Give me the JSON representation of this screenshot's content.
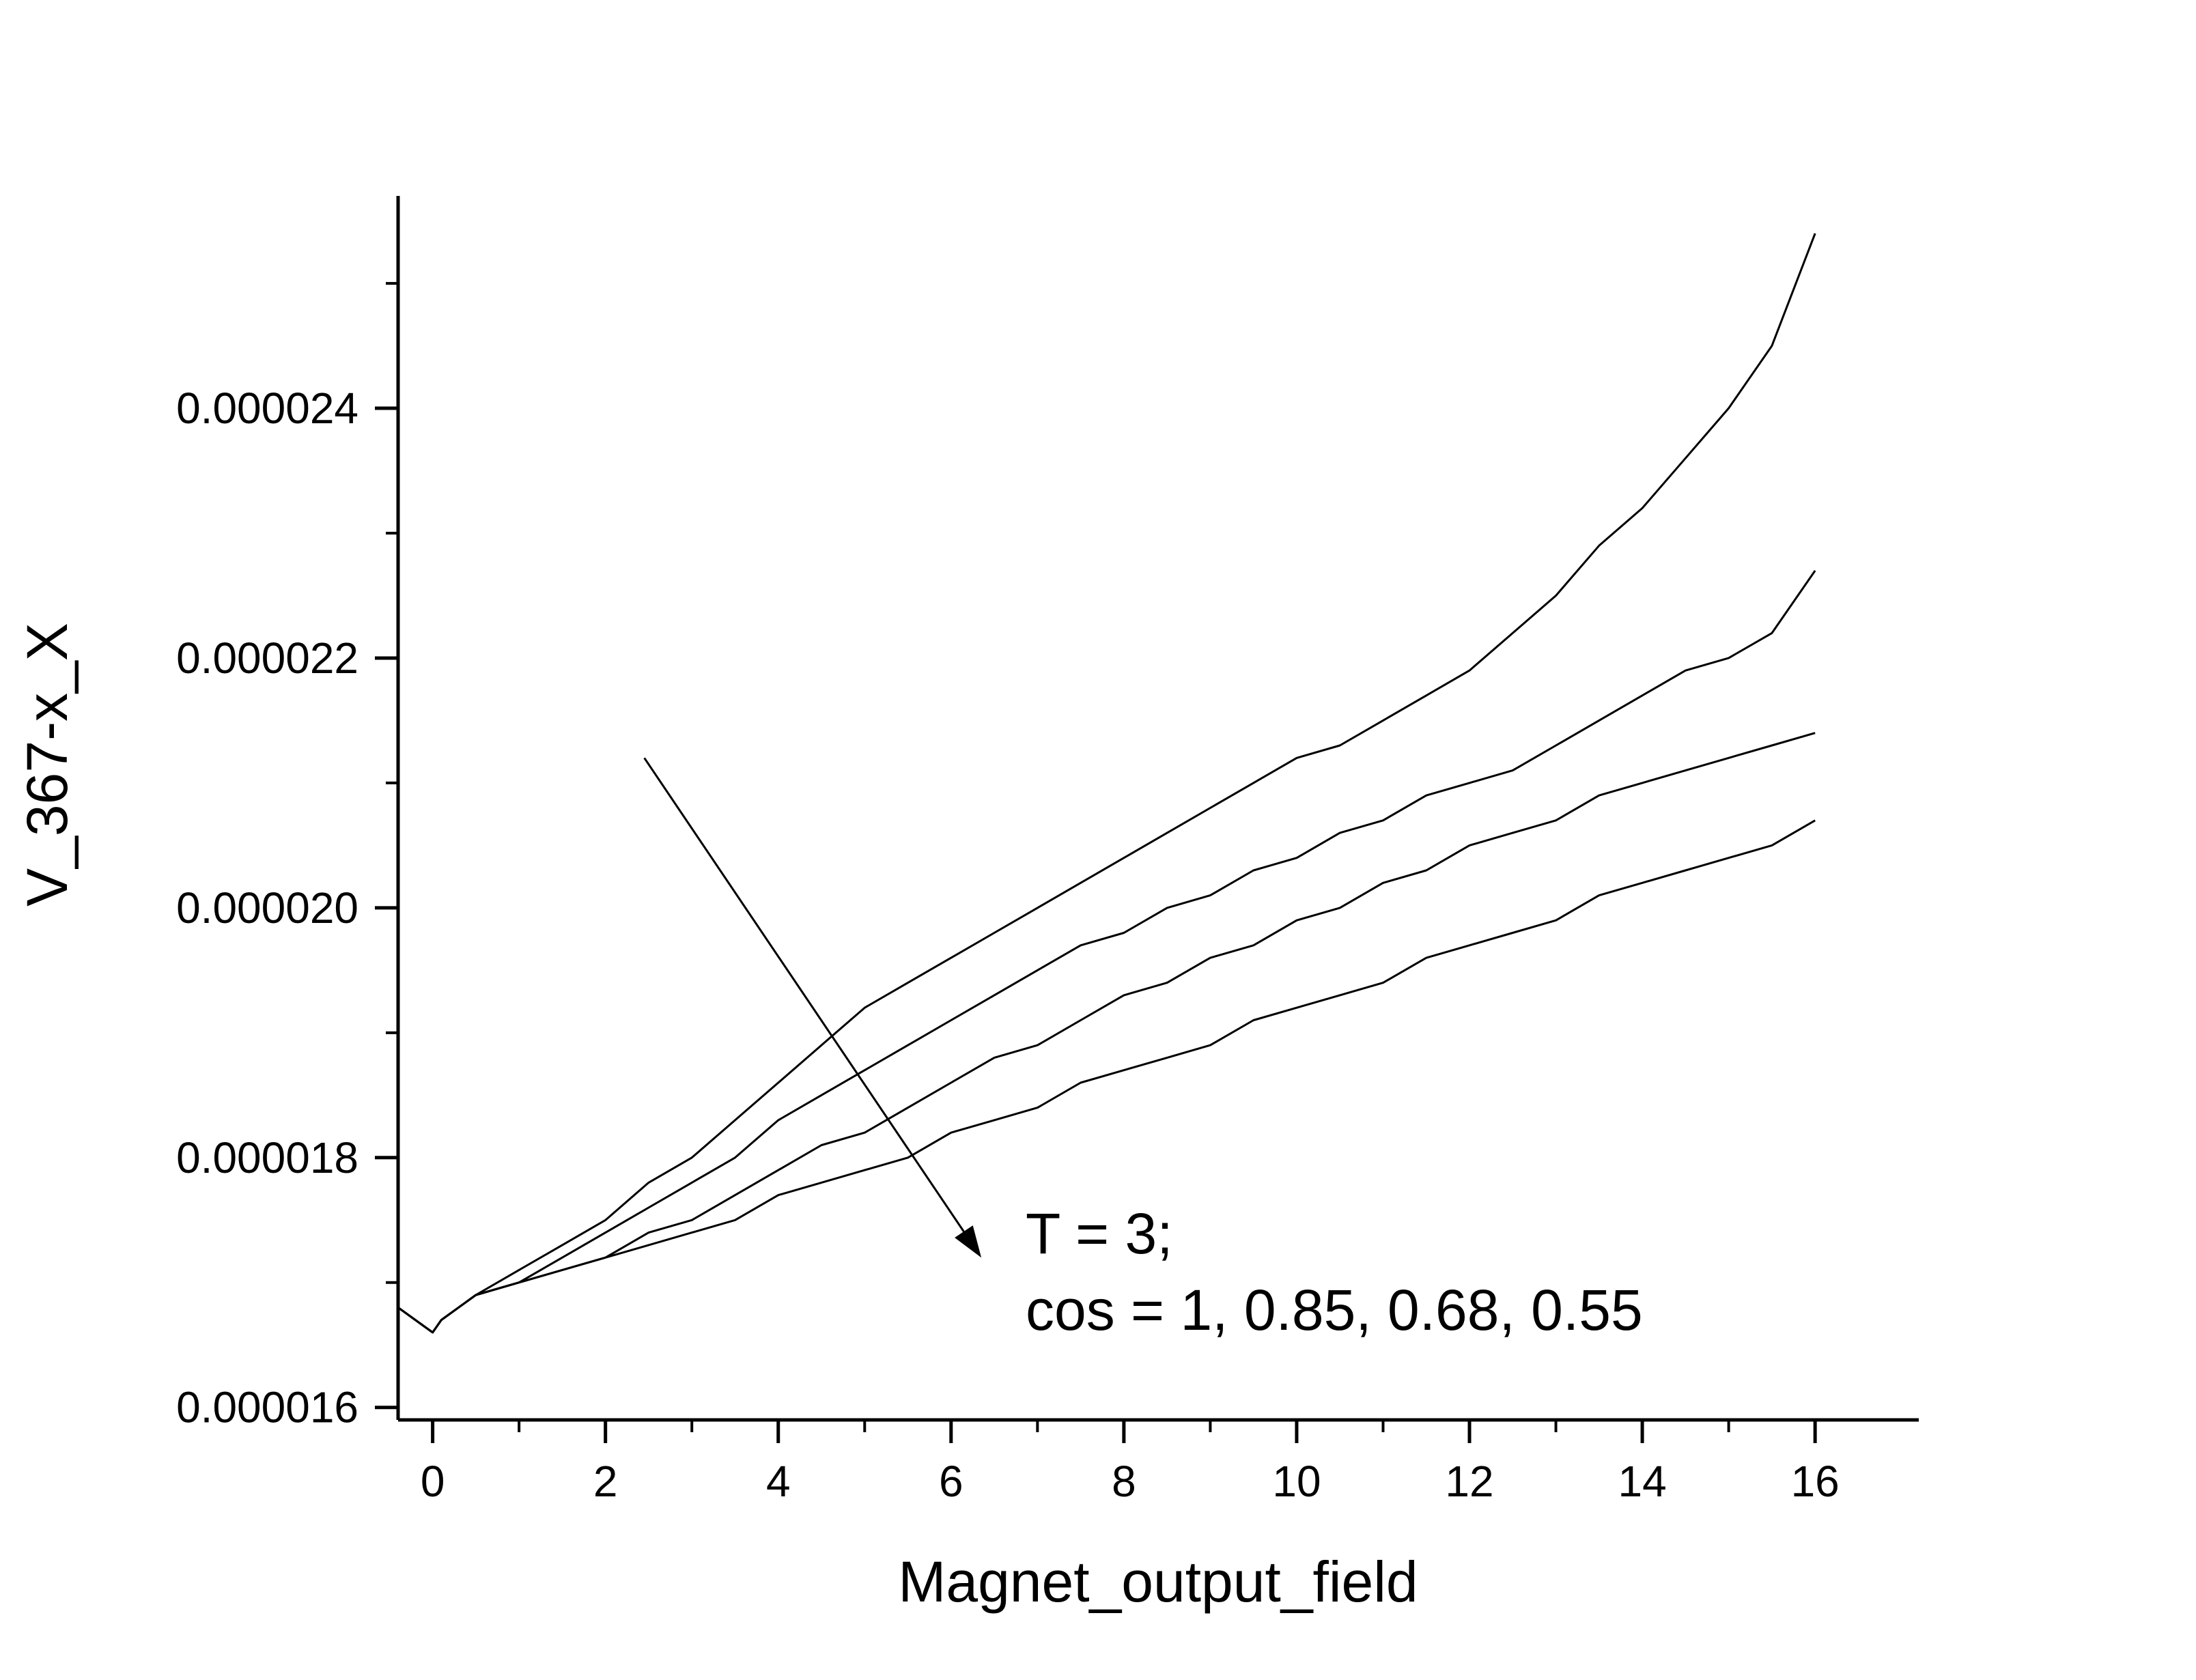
{
  "chart_data": {
    "type": "line",
    "title": "",
    "xlabel": "Magnet_output_field",
    "ylabel": "V_367-x_X",
    "xlim": [
      -0.4,
      17.2
    ],
    "ylim": [
      1.59e-05,
      2.57e-05
    ],
    "x_ticks": [
      0,
      2,
      4,
      6,
      8,
      10,
      12,
      14,
      16
    ],
    "x_tick_labels": [
      "0",
      "2",
      "4",
      "6",
      "8",
      "10",
      "12",
      "14",
      "16"
    ],
    "y_ticks": [
      1.6e-05,
      1.8e-05,
      2e-05,
      2.2e-05,
      2.4e-05
    ],
    "y_tick_labels": [
      "0.000016",
      "0.000018",
      "0.000020",
      "0.000022",
      "0.000024"
    ],
    "grid": false,
    "legend": "none",
    "line_color": "#000000",
    "series": [
      {
        "x": [
          -0.4,
          -0.2,
          0,
          0.1,
          0.3,
          0.5,
          1,
          1.5,
          2,
          2.5,
          3,
          3.5,
          4,
          4.5,
          5,
          5.5,
          6,
          6.5,
          7,
          7.5,
          8,
          8.5,
          9,
          9.5,
          10,
          10.5,
          11,
          11.5,
          12,
          12.5,
          13,
          13.5,
          14,
          14.5,
          15,
          15.5,
          16
        ],
        "y": [
          1.68e-05,
          1.67e-05,
          1.66e-05,
          1.67e-05,
          1.68e-05,
          1.69e-05,
          1.71e-05,
          1.73e-05,
          1.75e-05,
          1.78e-05,
          1.8e-05,
          1.83e-05,
          1.86e-05,
          1.89e-05,
          1.92e-05,
          1.94e-05,
          1.96e-05,
          1.98e-05,
          2e-05,
          2.02e-05,
          2.04e-05,
          2.06e-05,
          2.08e-05,
          2.1e-05,
          2.12e-05,
          2.13e-05,
          2.15e-05,
          2.17e-05,
          2.19e-05,
          2.22e-05,
          2.25e-05,
          2.29e-05,
          2.32e-05,
          2.36e-05,
          2.4e-05,
          2.45e-05,
          2.54e-05
        ]
      },
      {
        "x": [
          -0.4,
          -0.2,
          0,
          0.1,
          0.3,
          0.5,
          1,
          1.5,
          2,
          2.5,
          3,
          3.5,
          4,
          4.5,
          5,
          5.5,
          6,
          6.5,
          7,
          7.5,
          8,
          8.5,
          9,
          9.5,
          10,
          10.5,
          11,
          11.5,
          12,
          12.5,
          13,
          13.5,
          14,
          14.5,
          15,
          15.5,
          16
        ],
        "y": [
          1.68e-05,
          1.67e-05,
          1.66e-05,
          1.67e-05,
          1.68e-05,
          1.69e-05,
          1.7e-05,
          1.72e-05,
          1.74e-05,
          1.76e-05,
          1.78e-05,
          1.8e-05,
          1.83e-05,
          1.85e-05,
          1.87e-05,
          1.89e-05,
          1.91e-05,
          1.93e-05,
          1.95e-05,
          1.97e-05,
          1.98e-05,
          2e-05,
          2.01e-05,
          2.03e-05,
          2.04e-05,
          2.06e-05,
          2.07e-05,
          2.09e-05,
          2.1e-05,
          2.11e-05,
          2.13e-05,
          2.15e-05,
          2.17e-05,
          2.19e-05,
          2.2e-05,
          2.22e-05,
          2.27e-05
        ]
      },
      {
        "x": [
          -0.4,
          -0.2,
          0,
          0.1,
          0.3,
          0.5,
          1,
          1.5,
          2,
          2.5,
          3,
          3.5,
          4,
          4.5,
          5,
          5.5,
          6,
          6.5,
          7,
          7.5,
          8,
          8.5,
          9,
          9.5,
          10,
          10.5,
          11,
          11.5,
          12,
          12.5,
          13,
          13.5,
          14,
          14.5,
          15,
          15.5,
          16
        ],
        "y": [
          1.68e-05,
          1.67e-05,
          1.66e-05,
          1.67e-05,
          1.68e-05,
          1.69e-05,
          1.7e-05,
          1.71e-05,
          1.72e-05,
          1.74e-05,
          1.75e-05,
          1.77e-05,
          1.79e-05,
          1.81e-05,
          1.82e-05,
          1.84e-05,
          1.86e-05,
          1.88e-05,
          1.89e-05,
          1.91e-05,
          1.93e-05,
          1.94e-05,
          1.96e-05,
          1.97e-05,
          1.99e-05,
          2e-05,
          2.02e-05,
          2.03e-05,
          2.05e-05,
          2.06e-05,
          2.07e-05,
          2.09e-05,
          2.1e-05,
          2.11e-05,
          2.12e-05,
          2.13e-05,
          2.14e-05
        ]
      },
      {
        "x": [
          -0.4,
          -0.2,
          0,
          0.1,
          0.3,
          0.5,
          1,
          1.5,
          2,
          2.5,
          3,
          3.5,
          4,
          4.5,
          5,
          5.5,
          6,
          6.5,
          7,
          7.5,
          8,
          8.5,
          9,
          9.5,
          10,
          10.5,
          11,
          11.5,
          12,
          12.5,
          13,
          13.5,
          14,
          14.5,
          15,
          15.5,
          16
        ],
        "y": [
          1.68e-05,
          1.67e-05,
          1.66e-05,
          1.67e-05,
          1.68e-05,
          1.69e-05,
          1.7e-05,
          1.71e-05,
          1.72e-05,
          1.73e-05,
          1.74e-05,
          1.75e-05,
          1.77e-05,
          1.78e-05,
          1.79e-05,
          1.8e-05,
          1.82e-05,
          1.83e-05,
          1.84e-05,
          1.86e-05,
          1.87e-05,
          1.88e-05,
          1.89e-05,
          1.91e-05,
          1.92e-05,
          1.93e-05,
          1.94e-05,
          1.96e-05,
          1.97e-05,
          1.98e-05,
          1.99e-05,
          2.01e-05,
          2.02e-05,
          2.03e-05,
          2.04e-05,
          2.05e-05,
          2.07e-05
        ]
      }
    ],
    "annotation": {
      "lines": [
        "T = 3;",
        "cos = 1, 0.85, 0.68, 0.55"
      ],
      "arrow_from": [
        2.45,
        2.12e-05
      ],
      "arrow_to": [
        6.35,
        1.72e-05
      ]
    }
  }
}
